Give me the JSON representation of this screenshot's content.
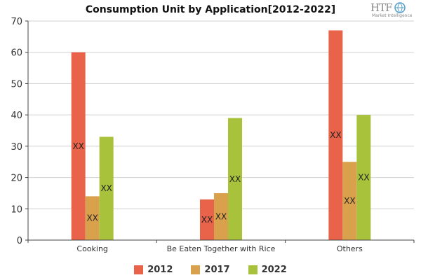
{
  "header": {
    "title": "Consumption Unit by  Application[2012-2022]"
  },
  "logo": {
    "brand": "HTF",
    "tagline": "Market Intelligence",
    "icon": "globe-icon"
  },
  "colors": {
    "2012": "#e8634a",
    "2017": "#d9a14b",
    "2022": "#a8c23c",
    "axis": "#444444",
    "grid": "#d0d0d0"
  },
  "chart_data": {
    "type": "bar",
    "title": "Consumption Unit by  Application[2012-2022]",
    "xlabel": "",
    "ylabel": "",
    "ylim": [
      0,
      70
    ],
    "yticks": [
      0,
      10,
      20,
      30,
      40,
      50,
      60,
      70
    ],
    "grid": true,
    "legend_position": "bottom",
    "categories": [
      "Cooking",
      "Be Eaten Together with Rice",
      "Others"
    ],
    "series": [
      {
        "name": "2012",
        "values": [
          60,
          13,
          67
        ],
        "data_labels": [
          "XX",
          "XX",
          "XX"
        ]
      },
      {
        "name": "2017",
        "values": [
          14,
          15,
          25
        ],
        "data_labels": [
          "XX",
          "XX",
          "XX"
        ]
      },
      {
        "name": "2022",
        "values": [
          33,
          39,
          40
        ],
        "data_labels": [
          "XX",
          "XX",
          "XX"
        ]
      }
    ]
  }
}
